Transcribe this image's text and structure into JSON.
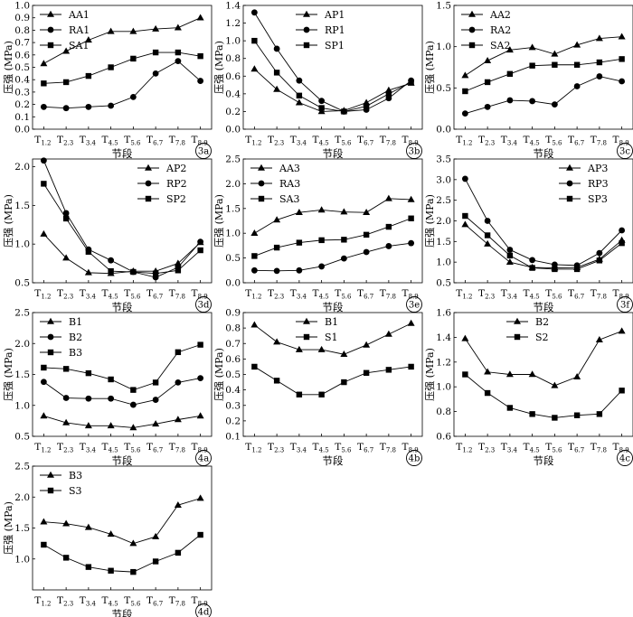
{
  "categories": [
    "1.2",
    "2.3",
    "3.4",
    "4.5",
    "5.6",
    "6.7",
    "7.8",
    "8.9"
  ],
  "cat_prefix": "T",
  "chart_data": [
    {
      "type": "line",
      "panel": "3a",
      "ylabel": "压强 (MPa)",
      "xlabel": "节段",
      "ylim": [
        0,
        1.0
      ],
      "yticks": [
        0,
        0.1,
        0.2,
        0.3,
        0.4,
        0.5,
        0.6,
        0.7,
        0.8,
        0.9,
        1.0
      ],
      "legend": "top-left",
      "series": [
        {
          "name": "AA1",
          "marker": "triangle",
          "values": [
            0.53,
            0.63,
            0.72,
            0.79,
            0.79,
            0.81,
            0.82,
            0.9
          ]
        },
        {
          "name": "RA1",
          "marker": "circle",
          "values": [
            0.18,
            0.17,
            0.18,
            0.19,
            0.26,
            0.45,
            0.55,
            0.39
          ]
        },
        {
          "name": "SA1",
          "marker": "square",
          "values": [
            0.37,
            0.38,
            0.43,
            0.5,
            0.57,
            0.62,
            0.62,
            0.59
          ]
        }
      ]
    },
    {
      "type": "line",
      "panel": "3b",
      "ylabel": "压强 (MPa)",
      "xlabel": "节段",
      "ylim": [
        0,
        1.4
      ],
      "yticks": [
        0,
        0.2,
        0.4,
        0.6,
        0.8,
        1.0,
        1.2,
        1.4
      ],
      "legend": "top-center",
      "series": [
        {
          "name": "AP1",
          "marker": "triangle",
          "values": [
            0.68,
            0.45,
            0.3,
            0.2,
            0.21,
            0.3,
            0.44,
            0.52
          ]
        },
        {
          "name": "RP1",
          "marker": "circle",
          "values": [
            1.32,
            0.91,
            0.55,
            0.32,
            0.2,
            0.22,
            0.35,
            0.55
          ]
        },
        {
          "name": "SP1",
          "marker": "square",
          "values": [
            1.0,
            0.64,
            0.38,
            0.24,
            0.2,
            0.26,
            0.4,
            0.53
          ]
        }
      ]
    },
    {
      "type": "line",
      "panel": "3c",
      "ylabel": "压强 (MPa)",
      "xlabel": "节段",
      "ylim": [
        0,
        1.5
      ],
      "yticks": [
        0,
        0.5,
        1.0,
        1.5
      ],
      "legend": "top-left",
      "series": [
        {
          "name": "AA2",
          "marker": "triangle",
          "values": [
            0.65,
            0.83,
            0.96,
            0.99,
            0.91,
            1.02,
            1.1,
            1.12
          ]
        },
        {
          "name": "RA2",
          "marker": "circle",
          "values": [
            0.19,
            0.27,
            0.35,
            0.34,
            0.3,
            0.52,
            0.64,
            0.58
          ]
        },
        {
          "name": "SA2",
          "marker": "square",
          "values": [
            0.46,
            0.57,
            0.67,
            0.77,
            0.78,
            0.78,
            0.81,
            0.85
          ]
        }
      ]
    },
    {
      "type": "line",
      "panel": "3d",
      "ylabel": "压强 (MPa)",
      "xlabel": "节段",
      "ylim": [
        0.5,
        2.1
      ],
      "yticks": [
        0.5,
        1.0,
        1.5,
        2.0
      ],
      "legend": "top-right",
      "series": [
        {
          "name": "AP2",
          "marker": "triangle",
          "values": [
            1.13,
            0.82,
            0.63,
            0.62,
            0.65,
            0.65,
            0.75,
            1.02
          ]
        },
        {
          "name": "RP2",
          "marker": "circle",
          "values": [
            2.08,
            1.4,
            0.93,
            0.79,
            0.64,
            0.57,
            0.7,
            1.03
          ]
        },
        {
          "name": "SP2",
          "marker": "square",
          "values": [
            1.78,
            1.33,
            0.9,
            0.65,
            0.64,
            0.62,
            0.66,
            0.92
          ]
        }
      ]
    },
    {
      "type": "line",
      "panel": "3e",
      "ylabel": "压强 (MPa)",
      "xlabel": "节段",
      "ylim": [
        0,
        2.5
      ],
      "yticks": [
        0,
        0.5,
        1.0,
        1.5,
        2.0,
        2.5
      ],
      "legend": "top-left",
      "series": [
        {
          "name": "AA3",
          "marker": "triangle",
          "values": [
            1.0,
            1.27,
            1.42,
            1.47,
            1.43,
            1.42,
            1.7,
            1.68
          ]
        },
        {
          "name": "RA3",
          "marker": "circle",
          "values": [
            0.25,
            0.24,
            0.25,
            0.33,
            0.49,
            0.62,
            0.74,
            0.8
          ]
        },
        {
          "name": "SA3",
          "marker": "square",
          "values": [
            0.54,
            0.71,
            0.81,
            0.86,
            0.87,
            0.97,
            1.13,
            1.3
          ]
        }
      ]
    },
    {
      "type": "line",
      "panel": "3f",
      "ylabel": "压强 (MPa)",
      "xlabel": "节段",
      "ylim": [
        0.5,
        3.5
      ],
      "yticks": [
        0.5,
        1.0,
        1.5,
        2.0,
        2.5,
        3.0,
        3.5
      ],
      "legend": "top-right",
      "series": [
        {
          "name": "AP3",
          "marker": "triangle",
          "values": [
            1.91,
            1.44,
            1.0,
            0.87,
            0.86,
            0.87,
            1.07,
            1.53
          ]
        },
        {
          "name": "RP3",
          "marker": "circle",
          "values": [
            3.02,
            2.0,
            1.3,
            1.05,
            0.94,
            0.92,
            1.22,
            1.77
          ]
        },
        {
          "name": "SP3",
          "marker": "square",
          "values": [
            2.12,
            1.65,
            1.16,
            0.86,
            0.83,
            0.83,
            1.04,
            1.46
          ]
        }
      ]
    },
    {
      "type": "line",
      "panel": "4a",
      "ylabel": "压强 (MPa)",
      "xlabel": "节段",
      "ylim": [
        0.5,
        2.5
      ],
      "yticks": [
        0.5,
        1.0,
        1.5,
        2.0,
        2.5
      ],
      "legend": "top-left",
      "series": [
        {
          "name": "B1",
          "marker": "triangle",
          "values": [
            0.83,
            0.72,
            0.67,
            0.67,
            0.64,
            0.7,
            0.77,
            0.83
          ]
        },
        {
          "name": "B2",
          "marker": "circle",
          "values": [
            1.38,
            1.12,
            1.11,
            1.11,
            1.01,
            1.09,
            1.37,
            1.44
          ]
        },
        {
          "name": "B3",
          "marker": "square",
          "values": [
            1.61,
            1.59,
            1.52,
            1.42,
            1.25,
            1.37,
            1.86,
            1.98
          ]
        }
      ]
    },
    {
      "type": "line",
      "panel": "4b",
      "ylabel": "压强 (MPa)",
      "xlabel": "节段",
      "ylim": [
        0.1,
        0.9
      ],
      "yticks": [
        0.1,
        0.2,
        0.3,
        0.4,
        0.5,
        0.6,
        0.7,
        0.8,
        0.9
      ],
      "legend": "top-center",
      "series": [
        {
          "name": "B1",
          "marker": "triangle",
          "values": [
            0.82,
            0.71,
            0.66,
            0.66,
            0.63,
            0.69,
            0.76,
            0.83
          ]
        },
        {
          "name": "S1",
          "marker": "square",
          "values": [
            0.55,
            0.46,
            0.37,
            0.37,
            0.45,
            0.51,
            0.53,
            0.55
          ]
        }
      ]
    },
    {
      "type": "line",
      "panel": "4c",
      "ylabel": "压强 (MPa)",
      "xlabel": "节段",
      "ylim": [
        0.6,
        1.6
      ],
      "yticks": [
        0.6,
        0.8,
        1.0,
        1.2,
        1.4,
        1.6
      ],
      "legend": "top-center",
      "series": [
        {
          "name": "B2",
          "marker": "triangle",
          "values": [
            1.39,
            1.12,
            1.1,
            1.1,
            1.01,
            1.08,
            1.38,
            1.45
          ]
        },
        {
          "name": "S2",
          "marker": "square",
          "values": [
            1.1,
            0.95,
            0.83,
            0.78,
            0.75,
            0.77,
            0.78,
            0.97
          ]
        }
      ]
    },
    {
      "type": "line",
      "panel": "4d",
      "ylabel": "压强 (MPa)",
      "xlabel": "节段",
      "ylim": [
        0.5,
        2.5
      ],
      "yticks": [
        1.0,
        1.5,
        2.0,
        2.5
      ],
      "legend": "top-left",
      "series": [
        {
          "name": "B3",
          "marker": "triangle",
          "values": [
            1.6,
            1.57,
            1.51,
            1.4,
            1.25,
            1.36,
            1.87,
            1.98
          ]
        },
        {
          "name": "S3",
          "marker": "square",
          "values": [
            1.23,
            1.02,
            0.87,
            0.81,
            0.79,
            0.96,
            1.1,
            1.39
          ]
        }
      ]
    }
  ]
}
